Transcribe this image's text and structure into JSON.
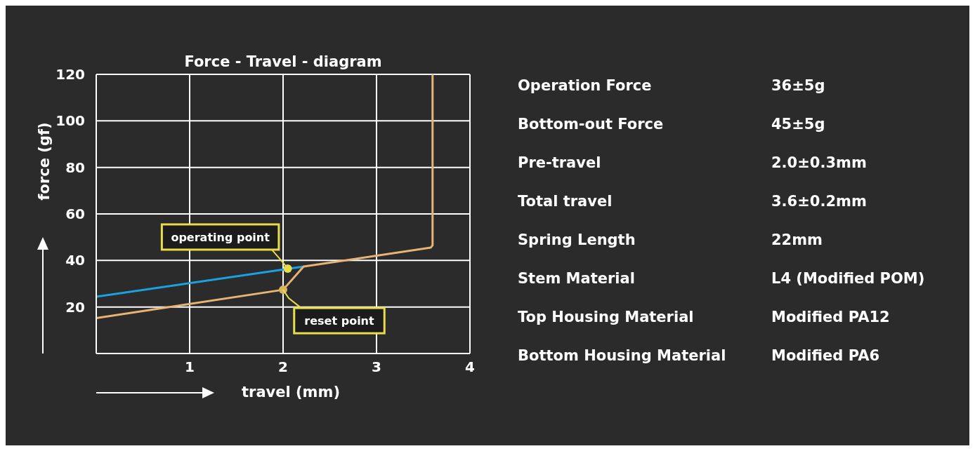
{
  "chart_data": [
    {
      "type": "line",
      "title": "Force - Travel - diagram",
      "xlabel": "travel (mm)",
      "ylabel": "force (gf)",
      "xlim": [
        0,
        4
      ],
      "xticks": [
        1,
        2,
        3,
        4
      ],
      "ylim": [
        0,
        120
      ],
      "yticks": [
        20,
        40,
        60,
        80,
        100,
        120
      ],
      "grid": true,
      "legend": false,
      "series": [
        {
          "type": "line",
          "color": "#19a1e0",
          "x": [
            0,
            2.22
          ],
          "values": [
            24.4,
            37.4
          ]
        },
        {
          "type": "line",
          "color": "#e6b574",
          "x": [
            0,
            2.0,
            2.22,
            3.58,
            3.6,
            3.6
          ],
          "values": [
            15.2,
            27.4,
            37.4,
            45.5,
            46.5,
            120
          ]
        },
        {
          "type": "scatter",
          "marker": "circle",
          "colors": [
            "#e6dc4c",
            "#d9b55f"
          ],
          "x": [
            2.05,
            2.0
          ],
          "values": [
            36.5,
            27.4
          ]
        }
      ],
      "annotations": [
        {
          "text": "operating point",
          "x": 2.05,
          "y": 36.5
        },
        {
          "text": "reset point",
          "x": 2.0,
          "y": 27.4
        }
      ]
    },
    {
      "type": "other",
      "annotations": [
        "Operation Force",
        "36±5g",
        "Bottom-out Force",
        "45±5g",
        "Pre-travel",
        "2.0±0.3mm",
        "Total travel",
        "3.6±0.2mm",
        "Spring Length",
        "22mm",
        "Stem Material",
        "L4 (Modified POM)",
        "Top Housing Material",
        "Modified PA12",
        "Bottom Housing Material",
        "Modified PA6"
      ]
    }
  ]
}
